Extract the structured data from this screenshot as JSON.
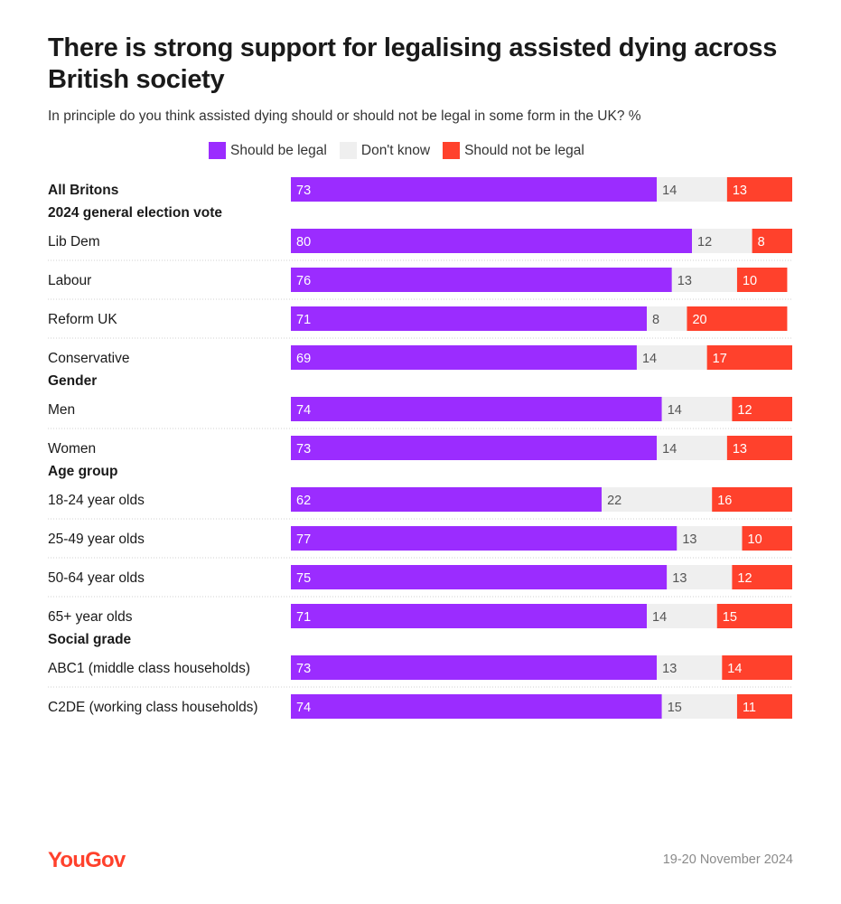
{
  "chart_data": {
    "type": "bar",
    "stacked": true,
    "orientation": "horizontal",
    "title": "There is strong support for legalising assisted dying across British society",
    "subtitle": "In principle do you think assisted dying should or should not be legal in some form in the UK? %",
    "legend": [
      {
        "name": "Should be legal",
        "color": "#9b2cff"
      },
      {
        "name": "Don't know",
        "color": "#efefef"
      },
      {
        "name": "Should not be legal",
        "color": "#ff412c"
      }
    ],
    "groups": [
      {
        "heading": "",
        "rows": [
          {
            "label": "All Britons",
            "bold": true,
            "values": [
              73,
              14,
              13
            ]
          }
        ]
      },
      {
        "heading": "2024 general election vote",
        "rows": [
          {
            "label": "Lib Dem",
            "values": [
              80,
              12,
              8
            ]
          },
          {
            "label": "Labour",
            "values": [
              76,
              13,
              10
            ]
          },
          {
            "label": "Reform UK",
            "values": [
              71,
              8,
              20
            ]
          },
          {
            "label": "Conservative",
            "values": [
              69,
              14,
              17
            ]
          }
        ]
      },
      {
        "heading": "Gender",
        "rows": [
          {
            "label": "Men",
            "values": [
              74,
              14,
              12
            ]
          },
          {
            "label": "Women",
            "values": [
              73,
              14,
              13
            ]
          }
        ]
      },
      {
        "heading": "Age group",
        "rows": [
          {
            "label": "18-24 year olds",
            "values": [
              62,
              22,
              16
            ]
          },
          {
            "label": "25-49 year olds",
            "values": [
              77,
              13,
              10
            ]
          },
          {
            "label": "50-64 year olds",
            "values": [
              75,
              13,
              12
            ]
          },
          {
            "label": "65+ year olds",
            "values": [
              71,
              14,
              15
            ]
          }
        ]
      },
      {
        "heading": "Social grade",
        "rows": [
          {
            "label": "ABC1 (middle class households)",
            "values": [
              73,
              13,
              14
            ]
          },
          {
            "label": "C2DE (working class households)",
            "values": [
              74,
              15,
              11
            ]
          }
        ]
      }
    ],
    "xlim": [
      0,
      100
    ]
  },
  "footer": {
    "brand": "YouGov",
    "date": "19-20 November 2024"
  }
}
